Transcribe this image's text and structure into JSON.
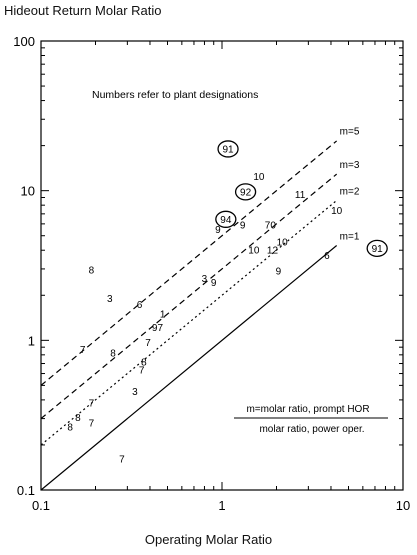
{
  "chart_data": {
    "type": "scatter",
    "ylabel": "Hideout Return Molar Ratio",
    "xlabel": "Operating Molar Ratio",
    "xscale": "log",
    "yscale": "log",
    "xlim": [
      0.1,
      10
    ],
    "ylim": [
      0.1,
      100
    ],
    "xticks": [
      0.1,
      1,
      10
    ],
    "xtick_labels": [
      "0.1",
      "1",
      "10"
    ],
    "yticks": [
      0.1,
      1,
      10,
      100
    ],
    "ytick_labels": [
      "0.1",
      "1",
      "10",
      "100"
    ],
    "grid": false,
    "annotation": "Numbers refer to plant designations",
    "formula": {
      "numerator": "m=molar ratio, prompt HOR",
      "denominator": "molar ratio, power oper."
    },
    "lines": [
      {
        "label": "m=1",
        "m": 1,
        "style": "solid",
        "x": [
          0.1,
          4.3
        ],
        "y": [
          0.1,
          4.3
        ]
      },
      {
        "label": "m=2",
        "m": 2,
        "style": "dotted",
        "x": [
          0.1,
          4.3
        ],
        "y": [
          0.2,
          8.6
        ]
      },
      {
        "label": "m=3",
        "m": 3,
        "style": "dashed",
        "x": [
          0.1,
          4.3
        ],
        "y": [
          0.3,
          12.9
        ]
      },
      {
        "label": "m=5",
        "m": 5,
        "style": "dashed",
        "x": [
          0.1,
          4.3
        ],
        "y": [
          0.5,
          21.5
        ]
      }
    ],
    "points": [
      {
        "label": "91",
        "x": 1.08,
        "y": 18.0,
        "circled": true
      },
      {
        "label": "10",
        "x": 1.6,
        "y": 11.8,
        "circled": false
      },
      {
        "label": "92",
        "x": 1.35,
        "y": 9.3,
        "circled": true
      },
      {
        "label": "11",
        "x": 2.7,
        "y": 8.9,
        "circled": false
      },
      {
        "label": "10",
        "x": 4.3,
        "y": 7.0,
        "circled": false
      },
      {
        "label": "94",
        "x": 1.05,
        "y": 6.1,
        "circled": true
      },
      {
        "label": "9",
        "x": 0.95,
        "y": 5.2,
        "circled": false
      },
      {
        "label": "9",
        "x": 1.3,
        "y": 5.6,
        "circled": false
      },
      {
        "label": "70",
        "x": 1.85,
        "y": 5.6,
        "circled": false
      },
      {
        "label": "91",
        "x": 7.2,
        "y": 3.9,
        "circled": true
      },
      {
        "label": "10",
        "x": 2.15,
        "y": 4.3,
        "circled": false
      },
      {
        "label": "10",
        "x": 1.5,
        "y": 3.8,
        "circled": false
      },
      {
        "label": "12",
        "x": 1.9,
        "y": 3.8,
        "circled": false
      },
      {
        "label": "6",
        "x": 3.8,
        "y": 3.5,
        "circled": false
      },
      {
        "label": "9",
        "x": 2.05,
        "y": 2.75,
        "circled": false
      },
      {
        "label": "8",
        "x": 0.19,
        "y": 2.8,
        "circled": false
      },
      {
        "label": "3",
        "x": 0.8,
        "y": 2.45,
        "circled": false
      },
      {
        "label": "9",
        "x": 0.9,
        "y": 2.3,
        "circled": false
      },
      {
        "label": "3",
        "x": 0.24,
        "y": 1.8,
        "circled": false
      },
      {
        "label": "6",
        "x": 0.35,
        "y": 1.65,
        "circled": false
      },
      {
        "label": "1",
        "x": 0.47,
        "y": 1.42,
        "circled": false
      },
      {
        "label": "97",
        "x": 0.44,
        "y": 1.15,
        "circled": false
      },
      {
        "label": "7",
        "x": 0.39,
        "y": 0.92,
        "circled": false
      },
      {
        "label": "7",
        "x": 0.17,
        "y": 0.82,
        "circled": false
      },
      {
        "label": "8",
        "x": 0.25,
        "y": 0.78,
        "circled": false
      },
      {
        "label": "8",
        "x": 0.37,
        "y": 0.68,
        "circled": false
      },
      {
        "label": "7",
        "x": 0.36,
        "y": 0.6,
        "circled": false
      },
      {
        "label": "3",
        "x": 0.33,
        "y": 0.43,
        "circled": false
      },
      {
        "label": "7",
        "x": 0.19,
        "y": 0.36,
        "circled": false
      },
      {
        "label": "8",
        "x": 0.16,
        "y": 0.29,
        "circled": false
      },
      {
        "label": "8",
        "x": 0.145,
        "y": 0.25,
        "circled": false
      },
      {
        "label": "7",
        "x": 0.19,
        "y": 0.265,
        "circled": false
      },
      {
        "label": "7",
        "x": 0.28,
        "y": 0.153,
        "circled": false
      }
    ]
  }
}
